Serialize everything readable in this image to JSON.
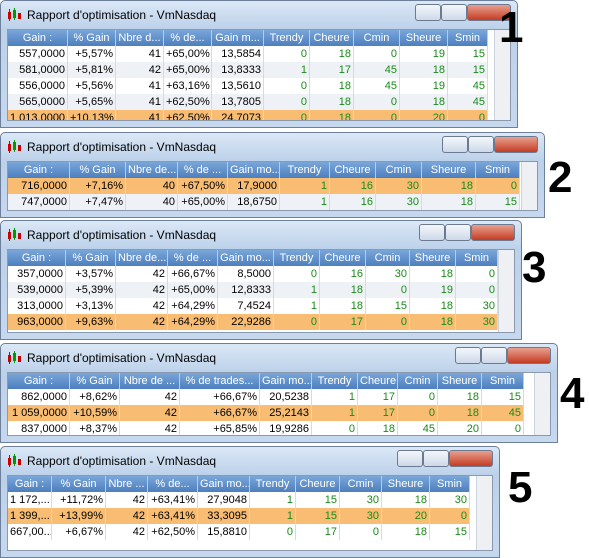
{
  "windows": [
    {
      "title": "Rapport d'optimisation - VmNasdaq",
      "label": "1",
      "selected_row": 4,
      "columns": [
        "Gain :",
        "% Gain",
        "Nbre d...",
        "% de...",
        "Gain m...",
        "Trendy",
        "Cheure",
        "Cmin",
        "Sheure",
        "Smin"
      ],
      "rows": [
        [
          "557,0000",
          "+5,57%",
          "41",
          "+65,00%",
          "13,5854",
          "0",
          "18",
          "0",
          "19",
          "15"
        ],
        [
          "581,0000",
          "+5,81%",
          "42",
          "+65,00%",
          "13,8333",
          "1",
          "17",
          "45",
          "18",
          "15"
        ],
        [
          "556,0000",
          "+5,56%",
          "41",
          "+63,16%",
          "13,5610",
          "0",
          "18",
          "45",
          "19",
          "45"
        ],
        [
          "565,0000",
          "+5,65%",
          "41",
          "+62,50%",
          "13,7805",
          "0",
          "18",
          "0",
          "18",
          "45"
        ],
        [
          "1 013,0000",
          "+10,13%",
          "41",
          "+62,50%",
          "24,7073",
          "0",
          "18",
          "0",
          "20",
          "0"
        ]
      ]
    },
    {
      "title": "Rapport d'optimisation - VmNasdaq",
      "label": "2",
      "selected_row": 0,
      "columns": [
        "Gain :",
        "% Gain",
        "Nbre de...",
        "% de ...",
        "Gain mo...",
        "Trendy",
        "Cheure",
        "Cmin",
        "Sheure",
        "Smin"
      ],
      "rows": [
        [
          "716,0000",
          "+7,16%",
          "40",
          "+67,50%",
          "17,9000",
          "1",
          "16",
          "30",
          "18",
          "0"
        ],
        [
          "747,0000",
          "+7,47%",
          "40",
          "+65,00%",
          "18,6750",
          "1",
          "16",
          "30",
          "18",
          "15"
        ]
      ]
    },
    {
      "title": "Rapport d'optimisation - VmNasdaq",
      "label": "3",
      "selected_row": 3,
      "columns": [
        "Gain :",
        "% Gain",
        "Nbre de...",
        "% de ...",
        "Gain mo...",
        "Trendy",
        "Cheure",
        "Cmin",
        "Sheure",
        "Smin"
      ],
      "rows": [
        [
          "357,0000",
          "+3,57%",
          "42",
          "+66,67%",
          "8,5000",
          "0",
          "16",
          "30",
          "18",
          "0"
        ],
        [
          "539,0000",
          "+5,39%",
          "42",
          "+65,00%",
          "12,8333",
          "1",
          "18",
          "0",
          "19",
          "0"
        ],
        [
          "313,0000",
          "+3,13%",
          "42",
          "+64,29%",
          "7,4524",
          "1",
          "18",
          "15",
          "18",
          "30"
        ],
        [
          "963,0000",
          "+9,63%",
          "42",
          "+64,29%",
          "22,9286",
          "0",
          "17",
          "0",
          "18",
          "30"
        ]
      ]
    },
    {
      "title": "Rapport d'optimisation - VmNasdaq",
      "label": "4",
      "selected_row": 1,
      "columns": [
        "Gain :",
        "% Gain",
        "Nbre de ...",
        "% de trades...",
        "Gain mo...",
        "Trendy",
        "Cheure",
        "Cmin",
        "Sheure",
        "Smin"
      ],
      "rows": [
        [
          "862,0000",
          "+8,62%",
          "42",
          "+66,67%",
          "20,5238",
          "1",
          "17",
          "0",
          "18",
          "15"
        ],
        [
          "1 059,0000",
          "+10,59%",
          "42",
          "+66,67%",
          "25,2143",
          "1",
          "17",
          "0",
          "18",
          "45"
        ],
        [
          "837,0000",
          "+8,37%",
          "42",
          "+65,85%",
          "19,9286",
          "0",
          "18",
          "45",
          "20",
          "0"
        ]
      ]
    },
    {
      "title": "Rapport d'optimisation - VmNasdaq",
      "label": "5",
      "selected_row": 1,
      "columns": [
        "Gain :",
        "% Gain",
        "Nbre ...",
        "% de...",
        "Gain mo...",
        "Trendy",
        "Cheure",
        "Cmin",
        "Sheure",
        "Smin"
      ],
      "rows": [
        [
          "1 172,...",
          "+11,72%",
          "42",
          "+63,41%",
          "27,9048",
          "1",
          "15",
          "30",
          "18",
          "30"
        ],
        [
          "1 399,...",
          "+13,99%",
          "42",
          "+63,41%",
          "33,3095",
          "1",
          "15",
          "30",
          "20",
          "0"
        ],
        [
          "667,00...",
          "+6,67%",
          "42",
          "+62,50%",
          "15,8810",
          "0",
          "17",
          "0",
          "18",
          "15"
        ]
      ]
    }
  ]
}
